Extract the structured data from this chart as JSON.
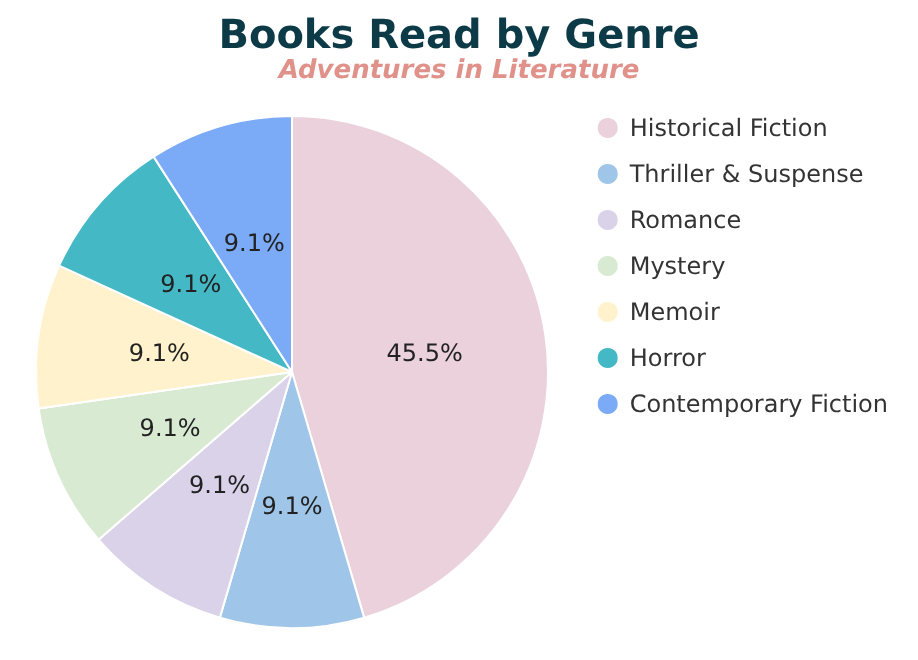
{
  "chart_data": {
    "type": "pie",
    "title": "Books Read by Genre",
    "subtitle": "Adventures in Literature",
    "categories": [
      "Historical Fiction",
      "Thriller & Suspense",
      "Romance",
      "Mystery",
      "Memoir",
      "Horror",
      "Contemporary Fiction"
    ],
    "values": [
      45.5,
      9.1,
      9.1,
      9.1,
      9.1,
      9.1,
      9.1
    ],
    "colors": [
      "#ead1dc",
      "#9fc5e8",
      "#d9d2e9",
      "#d9ead3",
      "#fff2cc",
      "#45b8c6",
      "#7baaf7"
    ],
    "value_labels": [
      "45.5%",
      "9.1%",
      "9.1%",
      "9.1%",
      "9.1%",
      "9.1%",
      "9.1%"
    ],
    "legend": "right"
  }
}
